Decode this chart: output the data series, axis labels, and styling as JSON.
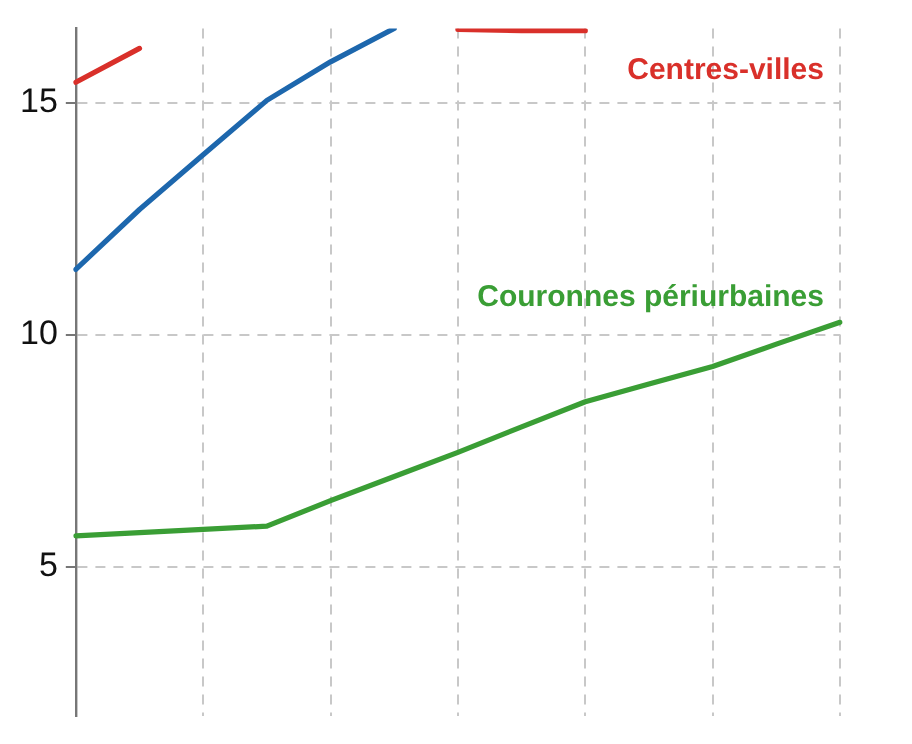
{
  "chart_data": {
    "type": "line",
    "categories": [
      null,
      null,
      null,
      null,
      null,
      null,
      null,
      null,
      null,
      null,
      null,
      null,
      null
    ],
    "ylim": [
      1.8,
      16.6
    ],
    "yticks": [
      5,
      10,
      15
    ],
    "grid": true,
    "tick_labels": "y",
    "legend": false,
    "marker": "none",
    "series": [
      {
        "name": "Centres-villes",
        "color": "#d9302a",
        "values": [
          15.44,
          16.17,
          null,
          null,
          null,
          null,
          16.58,
          16.55,
          16.55,
          null,
          null,
          null,
          null
        ]
      },
      {
        "color": "#1d67ad",
        "values": [
          11.41,
          12.7,
          13.88,
          15.05,
          15.88,
          16.6,
          null,
          null,
          null,
          null,
          null,
          null,
          null
        ]
      },
      {
        "name": "Couronnes périurbaines",
        "color": "#3a9e35",
        "values": [
          5.67,
          5.74,
          5.81,
          5.88,
          6.43,
          6.95,
          7.47,
          8.02,
          8.56,
          8.94,
          9.32,
          9.8,
          10.27
        ]
      }
    ]
  }
}
